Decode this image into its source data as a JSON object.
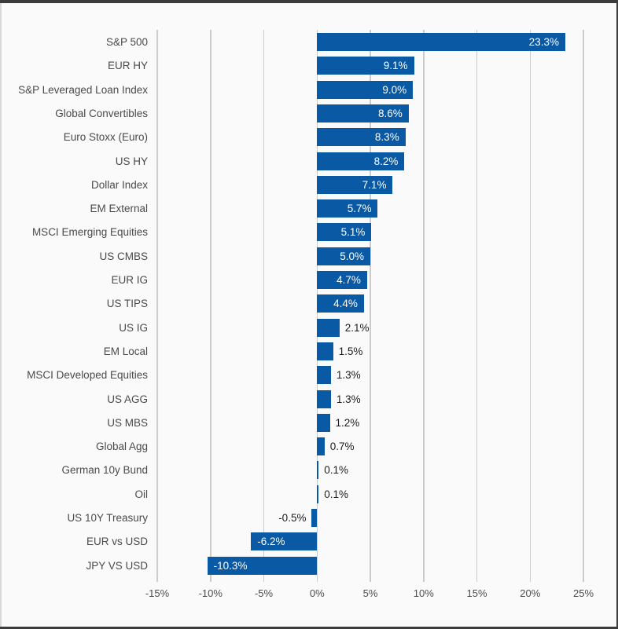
{
  "colors": {
    "bar": "#0a59a4",
    "background": "#fafafa",
    "gridline": "#cbcbcb",
    "frame_dark": "#3c3c3c",
    "category_text": "#4a4a4a",
    "value_text_outside": "#1d1d1d",
    "value_text_inside": "#ffffff",
    "tick_text": "#4c4c4c"
  },
  "chart_data": {
    "type": "bar",
    "orientation": "horizontal",
    "title": "",
    "xlabel": "",
    "ylabel": "",
    "grid": true,
    "legend": false,
    "categories": [
      "S&P 500",
      "EUR HY",
      "S&P Leveraged Loan Index",
      "Global Convertibles",
      "Euro Stoxx (Euro)",
      "US HY",
      "Dollar Index",
      "EM External",
      "MSCI Emerging Equities",
      "US CMBS",
      "EUR IG",
      "US TIPS",
      "US IG",
      "EM Local",
      "MSCI Developed Equities",
      "US AGG",
      "US MBS",
      "Global Agg",
      "German 10y Bund",
      "Oil",
      "US 10Y Treasury",
      "EUR vs USD",
      "JPY VS USD"
    ],
    "values": [
      23.3,
      9.1,
      9.0,
      8.6,
      8.3,
      8.2,
      7.1,
      5.7,
      5.1,
      5.0,
      4.7,
      4.4,
      2.1,
      1.5,
      1.3,
      1.3,
      1.2,
      0.7,
      0.1,
      0.1,
      -0.5,
      -6.2,
      -10.3
    ],
    "value_labels": [
      "23.3%",
      "9.1%",
      "9.0%",
      "8.6%",
      "8.3%",
      "8.2%",
      "7.1%",
      "5.7%",
      "5.1%",
      "5.0%",
      "4.7%",
      "4.4%",
      "2.1%",
      "1.5%",
      "1.3%",
      "1.3%",
      "1.2%",
      "0.7%",
      "0.1%",
      "0.1%",
      "-0.5%",
      "-6.2%",
      "-10.3%"
    ],
    "x_axis": {
      "min": -15,
      "max": 25,
      "step": 5,
      "tick_labels": [
        "-15%",
        "-10%",
        "-5%",
        "0%",
        "5%",
        "10%",
        "15%",
        "20%",
        "25%"
      ]
    }
  }
}
